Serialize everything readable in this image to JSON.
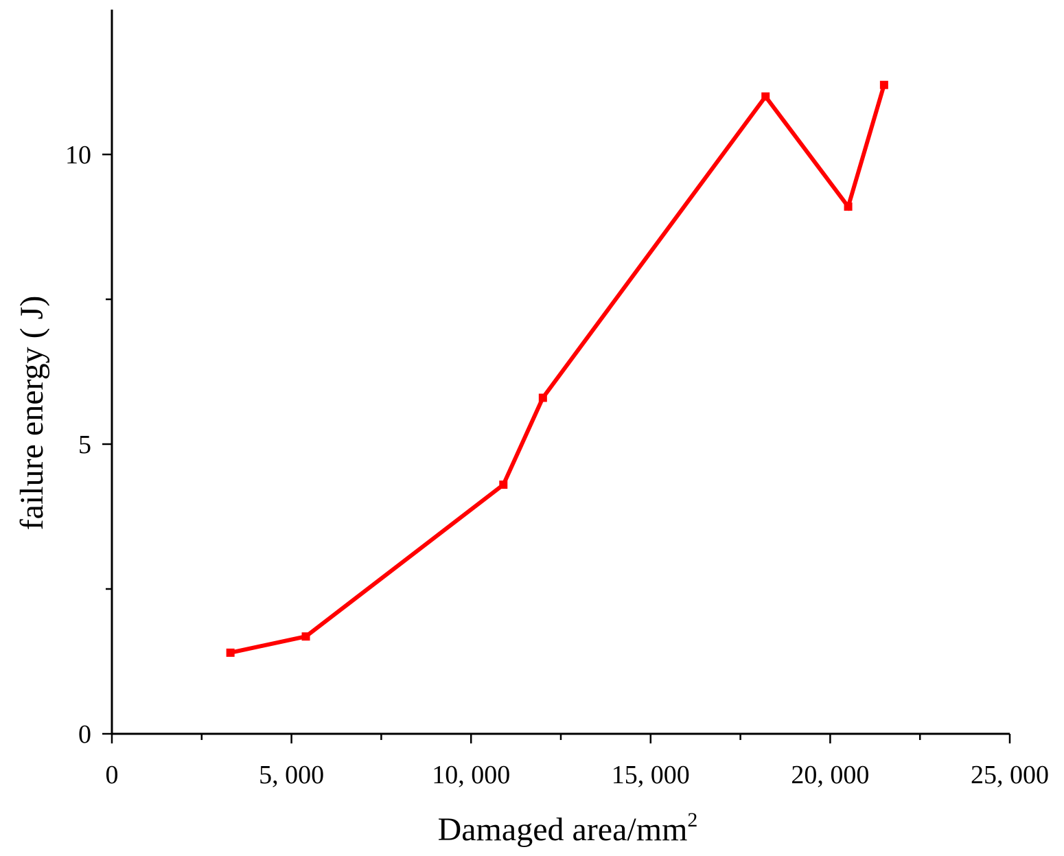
{
  "chart_data": {
    "type": "line",
    "title": "",
    "xlabel": "Damaged area/mm",
    "xlabel_superscript": "2",
    "ylabel": "failure energy ( J)",
    "xlim": [
      0,
      25000
    ],
    "ylim": [
      0,
      12.5
    ],
    "x_ticks": [
      0,
      5000,
      10000,
      15000,
      20000,
      25000
    ],
    "x_tick_labels": [
      "0",
      "5, 000",
      "10, 000",
      "15, 000",
      "20, 000",
      "25, 000"
    ],
    "x_minor_ticks": [
      2500,
      7500,
      12500,
      17500,
      22500
    ],
    "y_ticks": [
      0,
      5,
      10
    ],
    "y_tick_labels": [
      "0",
      "5",
      "10"
    ],
    "y_minor_ticks": [
      2.5,
      7.5
    ],
    "grid": false,
    "legend": "none",
    "series": [
      {
        "color": "#ff0000",
        "marker": "square",
        "x": [
          3300,
          5400,
          10900,
          12000,
          18200,
          20500,
          21500
        ],
        "y": [
          1.4,
          1.68,
          4.3,
          5.8,
          11.0,
          9.1,
          11.2
        ]
      }
    ]
  }
}
